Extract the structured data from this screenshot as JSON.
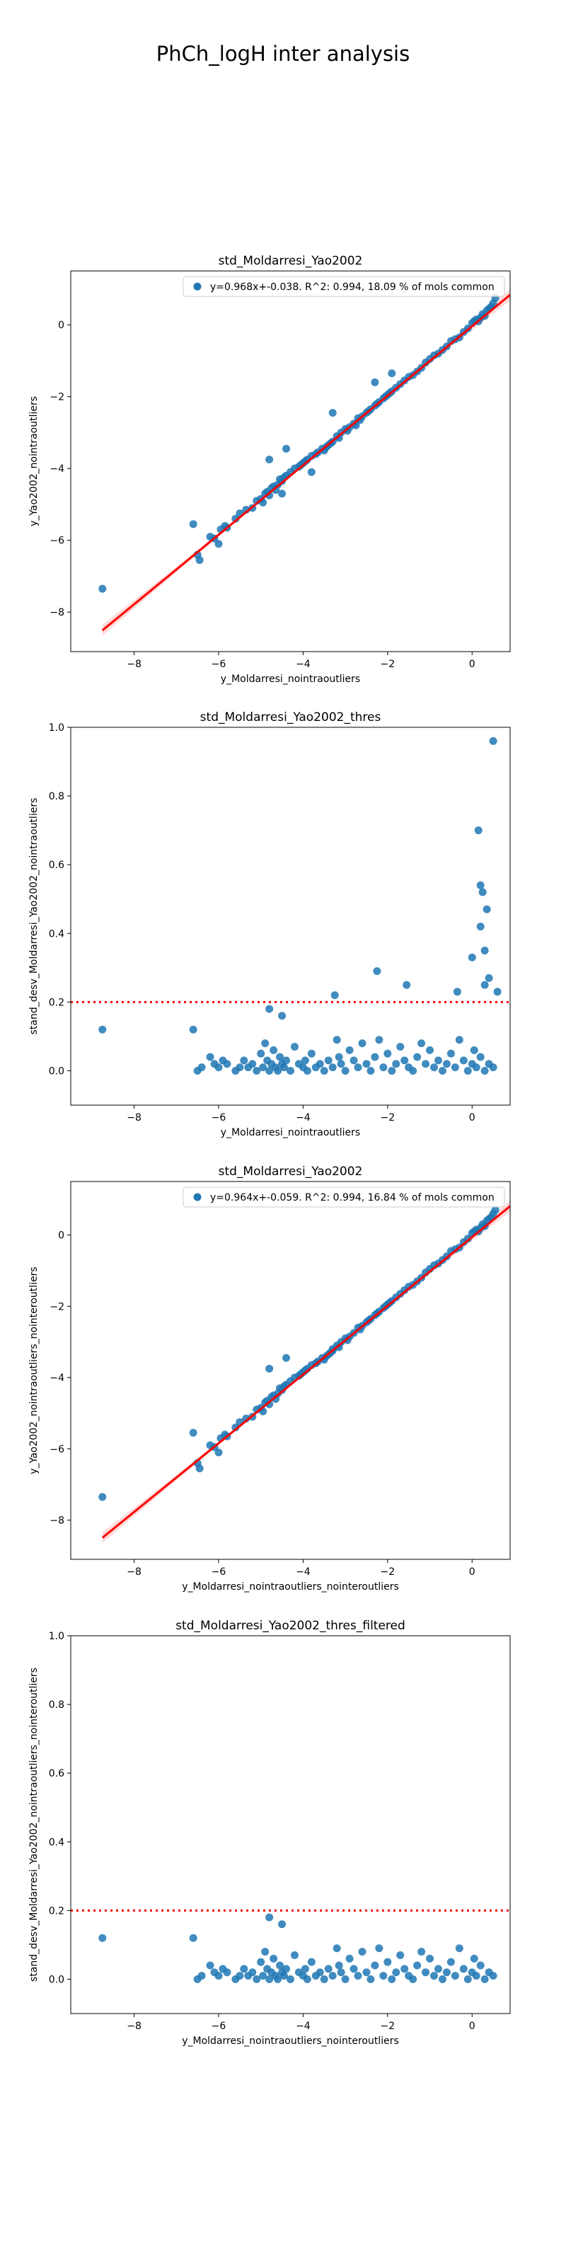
{
  "figure": {
    "suptitle": "PhCh_logH inter analysis"
  },
  "colors": {
    "points": "#1f77b4",
    "fit_line": "#ff0000",
    "threshold": "#ff0000",
    "axes": "#000000"
  },
  "chart_data": [
    {
      "type": "scatter",
      "title": "std_Moldarresi_Yao2002",
      "xlabel": "y_Moldarresi_nointraoutliers",
      "ylabel": "y_Yao2002_nointraoutliers",
      "xlim": [
        -9.5,
        0.9
      ],
      "ylim": [
        -9.1,
        1.5
      ],
      "xticks": [
        -8,
        -6,
        -4,
        -2,
        0
      ],
      "yticks": [
        -8,
        -6,
        -4,
        -2,
        0
      ],
      "legend": {
        "label": "y=0.968x+-0.038. R^2: 0.994, 18.09 % of mols common",
        "placement": "top-right"
      },
      "fit": {
        "slope": 0.968,
        "intercept": -0.038
      },
      "x": [
        -8.75,
        -6.6,
        -6.5,
        -6.45,
        -6.2,
        -6.1,
        -6.0,
        -5.95,
        -5.85,
        -5.8,
        -5.6,
        -5.5,
        -5.35,
        -5.2,
        -5.1,
        -5.0,
        -4.95,
        -4.9,
        -4.85,
        -4.8,
        -4.75,
        -4.7,
        -4.65,
        -4.6,
        -4.55,
        -4.5,
        -4.45,
        -4.4,
        -4.3,
        -4.2,
        -4.1,
        -4.05,
        -4.0,
        -3.95,
        -3.9,
        -3.8,
        -3.7,
        -3.65,
        -3.55,
        -3.5,
        -3.45,
        -3.4,
        -3.35,
        -3.3,
        -3.2,
        -3.15,
        -3.1,
        -3.0,
        -2.95,
        -2.9,
        -2.8,
        -2.7,
        -2.65,
        -2.6,
        -2.5,
        -2.45,
        -2.4,
        -2.3,
        -2.25,
        -2.2,
        -2.1,
        -2.05,
        -2.0,
        -1.95,
        -1.9,
        -1.8,
        -1.7,
        -1.6,
        -1.5,
        -1.4,
        -1.3,
        -1.2,
        -1.1,
        -1.0,
        -0.9,
        -0.8,
        -0.7,
        -0.6,
        -0.5,
        -0.4,
        -0.3,
        -0.2,
        -0.1,
        0.0,
        0.05,
        0.1,
        0.15,
        0.2,
        0.25,
        0.3,
        0.35,
        0.4,
        0.45,
        0.5,
        0.55,
        -4.8,
        -4.4,
        -3.3,
        -2.3,
        -1.9,
        -4.5,
        -3.8,
        -2.75
      ],
      "y": [
        -7.35,
        -5.55,
        -6.4,
        -6.55,
        -5.9,
        -5.95,
        -6.1,
        -5.7,
        -5.6,
        -5.65,
        -5.4,
        -5.25,
        -5.15,
        -5.1,
        -4.9,
        -4.85,
        -4.95,
        -4.7,
        -4.65,
        -4.75,
        -4.55,
        -4.5,
        -4.6,
        -4.45,
        -4.3,
        -4.35,
        -4.25,
        -4.2,
        -4.1,
        -4.0,
        -3.95,
        -3.9,
        -3.85,
        -3.8,
        -3.75,
        -3.65,
        -3.6,
        -3.55,
        -3.45,
        -3.5,
        -3.4,
        -3.35,
        -3.3,
        -3.25,
        -3.1,
        -3.15,
        -3.0,
        -2.9,
        -2.95,
        -2.85,
        -2.75,
        -2.6,
        -2.65,
        -2.55,
        -2.45,
        -2.4,
        -2.35,
        -2.25,
        -2.2,
        -2.15,
        -2.05,
        -2.0,
        -1.95,
        -1.9,
        -1.85,
        -1.75,
        -1.65,
        -1.55,
        -1.45,
        -1.4,
        -1.3,
        -1.2,
        -1.05,
        -0.95,
        -0.85,
        -0.8,
        -0.7,
        -0.6,
        -0.45,
        -0.4,
        -0.35,
        -0.2,
        -0.1,
        0.05,
        0.1,
        0.15,
        0.1,
        0.2,
        0.3,
        0.25,
        0.4,
        0.45,
        0.5,
        0.6,
        0.75,
        -3.75,
        -3.45,
        -2.45,
        -1.6,
        -1.35,
        -4.7,
        -4.1,
        -2.8
      ]
    },
    {
      "type": "scatter",
      "title": "std_Moldarresi_Yao2002_thres",
      "xlabel": "y_Moldarresi_nointraoutliers",
      "ylabel": "stand_desv_Moldarresi_Yao2002_nointraoutliers",
      "xlim": [
        -9.5,
        0.9
      ],
      "ylim": [
        -0.1,
        1.0
      ],
      "xticks": [
        -8,
        -6,
        -4,
        -2,
        0
      ],
      "yticks": [
        0.0,
        0.2,
        0.4,
        0.6,
        0.8,
        1.0
      ],
      "threshold": 0.2,
      "x": [
        -8.75,
        -6.6,
        -6.5,
        -6.4,
        -6.2,
        -6.1,
        -6.0,
        -5.9,
        -5.8,
        -5.6,
        -5.5,
        -5.4,
        -5.3,
        -5.2,
        -5.1,
        -5.0,
        -4.95,
        -4.9,
        -4.85,
        -4.8,
        -4.75,
        -4.7,
        -4.65,
        -4.6,
        -4.55,
        -4.5,
        -4.45,
        -4.4,
        -4.3,
        -4.2,
        -4.1,
        -4.0,
        -3.95,
        -3.9,
        -3.8,
        -3.7,
        -3.6,
        -3.5,
        -3.4,
        -3.3,
        -3.2,
        -3.15,
        -3.1,
        -3.0,
        -2.9,
        -2.8,
        -2.7,
        -2.6,
        -2.5,
        -2.4,
        -2.3,
        -2.2,
        -2.1,
        -2.0,
        -1.9,
        -1.8,
        -1.7,
        -1.6,
        -1.5,
        -1.4,
        -1.3,
        -1.2,
        -1.1,
        -1.0,
        -0.9,
        -0.8,
        -0.7,
        -0.6,
        -0.5,
        -0.4,
        -0.3,
        -0.2,
        -0.1,
        0.0,
        0.05,
        0.1,
        0.2,
        0.3,
        0.4,
        0.5,
        -4.8,
        -4.5,
        -3.25,
        -2.25,
        -1.55,
        -0.35,
        0.0,
        0.15,
        0.2,
        0.25,
        0.3,
        0.35,
        0.4,
        0.5,
        0.6,
        0.2,
        0.3
      ],
      "y": [
        0.12,
        0.12,
        0.0,
        0.01,
        0.04,
        0.02,
        0.01,
        0.03,
        0.02,
        0.0,
        0.01,
        0.03,
        0.01,
        0.02,
        0.0,
        0.05,
        0.01,
        0.08,
        0.03,
        0.0,
        0.02,
        0.06,
        0.01,
        0.0,
        0.04,
        0.02,
        0.01,
        0.03,
        0.0,
        0.07,
        0.02,
        0.01,
        0.03,
        0.0,
        0.05,
        0.01,
        0.02,
        0.0,
        0.03,
        0.01,
        0.09,
        0.04,
        0.02,
        0.0,
        0.06,
        0.03,
        0.01,
        0.08,
        0.02,
        0.0,
        0.04,
        0.09,
        0.01,
        0.05,
        0.0,
        0.02,
        0.07,
        0.03,
        0.01,
        0.0,
        0.04,
        0.08,
        0.02,
        0.06,
        0.01,
        0.03,
        0.0,
        0.02,
        0.05,
        0.01,
        0.09,
        0.03,
        0.0,
        0.02,
        0.06,
        0.01,
        0.04,
        0.0,
        0.02,
        0.01,
        0.18,
        0.16,
        0.22,
        0.29,
        0.25,
        0.23,
        0.33,
        0.7,
        0.54,
        0.52,
        0.35,
        0.47,
        0.27,
        0.96,
        0.23,
        0.42,
        0.25
      ]
    },
    {
      "type": "scatter",
      "title": "std_Moldarresi_Yao2002",
      "xlabel": "y_Moldarresi_nointraoutliers_nointeroutliers",
      "ylabel": "y_Yao2002_nointraoutliers_nointeroutliers",
      "xlim": [
        -9.5,
        0.9
      ],
      "ylim": [
        -9.1,
        1.5
      ],
      "xticks": [
        -8,
        -6,
        -4,
        -2,
        0
      ],
      "yticks": [
        -8,
        -6,
        -4,
        -2,
        0
      ],
      "legend": {
        "label": "y=0.964x+-0.059. R^2: 0.994, 16.84 % of mols common",
        "placement": "top-right"
      },
      "fit": {
        "slope": 0.964,
        "intercept": -0.059
      },
      "x": [
        -8.75,
        -6.6,
        -6.5,
        -6.45,
        -6.2,
        -6.1,
        -6.0,
        -5.95,
        -5.85,
        -5.8,
        -5.6,
        -5.5,
        -5.35,
        -5.2,
        -5.1,
        -5.0,
        -4.95,
        -4.9,
        -4.85,
        -4.8,
        -4.75,
        -4.7,
        -4.65,
        -4.6,
        -4.55,
        -4.5,
        -4.45,
        -4.4,
        -4.3,
        -4.2,
        -4.1,
        -4.05,
        -4.0,
        -3.95,
        -3.9,
        -3.8,
        -3.7,
        -3.65,
        -3.55,
        -3.5,
        -3.45,
        -3.4,
        -3.35,
        -3.3,
        -3.2,
        -3.15,
        -3.1,
        -3.0,
        -2.95,
        -2.9,
        -2.8,
        -2.7,
        -2.65,
        -2.6,
        -2.5,
        -2.45,
        -2.4,
        -2.3,
        -2.25,
        -2.2,
        -2.1,
        -2.05,
        -2.0,
        -1.95,
        -1.9,
        -1.8,
        -1.7,
        -1.6,
        -1.5,
        -1.4,
        -1.3,
        -1.2,
        -1.1,
        -1.0,
        -0.9,
        -0.8,
        -0.7,
        -0.6,
        -0.5,
        -0.4,
        -0.3,
        -0.2,
        -0.1,
        0.0,
        0.05,
        0.1,
        0.15,
        0.2,
        0.25,
        0.3,
        0.35,
        0.4,
        0.45,
        0.5,
        0.55,
        -4.8,
        -4.4,
        -3.3
      ],
      "y": [
        -7.35,
        -5.55,
        -6.4,
        -6.55,
        -5.9,
        -5.95,
        -6.1,
        -5.7,
        -5.6,
        -5.65,
        -5.4,
        -5.25,
        -5.15,
        -5.1,
        -4.9,
        -4.85,
        -4.95,
        -4.7,
        -4.65,
        -4.75,
        -4.55,
        -4.5,
        -4.6,
        -4.45,
        -4.3,
        -4.35,
        -4.25,
        -4.2,
        -4.1,
        -4.0,
        -3.95,
        -3.9,
        -3.85,
        -3.8,
        -3.75,
        -3.65,
        -3.6,
        -3.55,
        -3.45,
        -3.5,
        -3.4,
        -3.35,
        -3.3,
        -3.25,
        -3.1,
        -3.15,
        -3.0,
        -2.9,
        -2.95,
        -2.85,
        -2.75,
        -2.6,
        -2.65,
        -2.55,
        -2.45,
        -2.4,
        -2.35,
        -2.25,
        -2.2,
        -2.15,
        -2.05,
        -2.0,
        -1.95,
        -1.9,
        -1.85,
        -1.75,
        -1.65,
        -1.55,
        -1.45,
        -1.4,
        -1.3,
        -1.2,
        -1.05,
        -0.95,
        -0.85,
        -0.8,
        -0.7,
        -0.6,
        -0.45,
        -0.4,
        -0.35,
        -0.2,
        -0.1,
        0.05,
        0.1,
        0.15,
        0.1,
        0.2,
        0.3,
        0.25,
        0.4,
        0.45,
        0.5,
        0.6,
        0.7,
        -3.75,
        -3.45,
        -3.2
      ]
    },
    {
      "type": "scatter",
      "title": "std_Moldarresi_Yao2002_thres_filtered",
      "xlabel": "y_Moldarresi_nointraoutliers_nointeroutliers",
      "ylabel": "stand_desv_Moldarresi_Yao2002_nointraoutliers_nointeroutliers",
      "xlim": [
        -9.5,
        0.9
      ],
      "ylim": [
        -0.1,
        1.0
      ],
      "xticks": [
        -8,
        -6,
        -4,
        -2,
        0
      ],
      "yticks": [
        0.0,
        0.2,
        0.4,
        0.6,
        0.8,
        1.0
      ],
      "threshold": 0.2,
      "x": [
        -8.75,
        -6.6,
        -6.5,
        -6.4,
        -6.2,
        -6.1,
        -6.0,
        -5.9,
        -5.8,
        -5.6,
        -5.5,
        -5.4,
        -5.3,
        -5.2,
        -5.1,
        -5.0,
        -4.95,
        -4.9,
        -4.85,
        -4.8,
        -4.75,
        -4.7,
        -4.65,
        -4.6,
        -4.55,
        -4.5,
        -4.45,
        -4.4,
        -4.3,
        -4.2,
        -4.1,
        -4.0,
        -3.95,
        -3.9,
        -3.8,
        -3.7,
        -3.6,
        -3.5,
        -3.4,
        -3.3,
        -3.2,
        -3.15,
        -3.1,
        -3.0,
        -2.9,
        -2.8,
        -2.7,
        -2.6,
        -2.5,
        -2.4,
        -2.3,
        -2.2,
        -2.1,
        -2.0,
        -1.9,
        -1.8,
        -1.7,
        -1.6,
        -1.5,
        -1.4,
        -1.3,
        -1.2,
        -1.1,
        -1.0,
        -0.9,
        -0.8,
        -0.7,
        -0.6,
        -0.5,
        -0.4,
        -0.3,
        -0.2,
        -0.1,
        0.0,
        0.05,
        0.1,
        0.2,
        0.3,
        0.4,
        0.5,
        -4.8,
        -4.5
      ],
      "y": [
        0.12,
        0.12,
        0.0,
        0.01,
        0.04,
        0.02,
        0.01,
        0.03,
        0.02,
        0.0,
        0.01,
        0.03,
        0.01,
        0.02,
        0.0,
        0.05,
        0.01,
        0.08,
        0.03,
        0.0,
        0.02,
        0.06,
        0.01,
        0.0,
        0.04,
        0.02,
        0.01,
        0.03,
        0.0,
        0.07,
        0.02,
        0.01,
        0.03,
        0.0,
        0.05,
        0.01,
        0.02,
        0.0,
        0.03,
        0.01,
        0.09,
        0.04,
        0.02,
        0.0,
        0.06,
        0.03,
        0.01,
        0.08,
        0.02,
        0.0,
        0.04,
        0.09,
        0.01,
        0.05,
        0.0,
        0.02,
        0.07,
        0.03,
        0.01,
        0.0,
        0.04,
        0.08,
        0.02,
        0.06,
        0.01,
        0.03,
        0.0,
        0.02,
        0.05,
        0.01,
        0.09,
        0.03,
        0.0,
        0.02,
        0.06,
        0.01,
        0.04,
        0.0,
        0.02,
        0.01,
        0.18,
        0.16
      ]
    }
  ]
}
